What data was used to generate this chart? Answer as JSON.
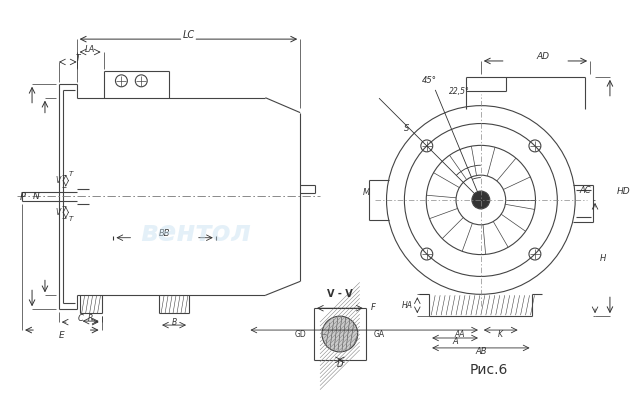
{
  "bg_color": "#ffffff",
  "line_color": "#444444",
  "dim_color": "#333333",
  "fig_width": 6.4,
  "fig_height": 3.93,
  "caption": "Рис.6",
  "section_label": "V - V",
  "watermark": "вентол"
}
